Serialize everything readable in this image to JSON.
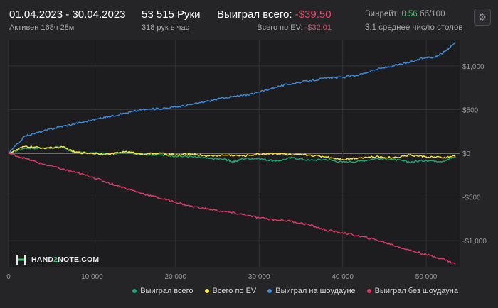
{
  "header": {
    "date_range": "01.04.2023 - 30.04.2023",
    "active_time": "Активен 168ч 28м",
    "hands": "53 515 Руки",
    "hands_per_hour": "318 рук в час",
    "won_total_label": "Выиграл всего:",
    "won_total_value": "-$39.50",
    "ev_label": "Всего по EV:",
    "ev_value": "-$32.01",
    "winrate_label": "Винрейт:",
    "winrate_value": "0.56",
    "winrate_unit": "бб/100",
    "avg_tables": "3.1 среднее число столов"
  },
  "icons": {
    "settings": "gear-icon",
    "logo": "hand2note-logo"
  },
  "logo": {
    "prefix": "HAND",
    "two": "2",
    "suffix": "NOTE.COM"
  },
  "colors": {
    "background": "#252528",
    "plot_background": "#1d1d20",
    "won_total": "#1fa874",
    "ev": "#ffe633",
    "showdown": "#3d8fe0",
    "non_showdown": "#e03a68",
    "negative": "#e24a6b",
    "positive": "#3ec46d"
  },
  "chart_data": {
    "type": "line",
    "xlabel": "",
    "ylabel": "",
    "xlim": [
      0,
      54000
    ],
    "ylim": [
      -1300,
      1300
    ],
    "x_ticks": [
      0,
      10000,
      20000,
      30000,
      40000,
      50000
    ],
    "x_tick_labels": [
      "0",
      "10 000",
      "20 000",
      "30 000",
      "40 000",
      "50 000"
    ],
    "y_ticks": [
      1000,
      500,
      0,
      -500,
      -1000
    ],
    "y_tick_labels": [
      "$1,000",
      "$500",
      "$0",
      "-$500",
      "-$1,000"
    ],
    "grid": true,
    "legend": "bottom-right",
    "series": [
      {
        "name": "Выиграл всего",
        "color": "#1fa874",
        "x": [
          0,
          2000,
          4000,
          6500,
          8000,
          10000,
          12000,
          14000,
          16000,
          18000,
          20000,
          22000,
          24000,
          26000,
          27000,
          28000,
          30000,
          32000,
          34000,
          36000,
          38000,
          40000,
          42000,
          44000,
          46000,
          48000,
          50000,
          52000,
          53515
        ],
        "y": [
          0,
          60,
          60,
          70,
          10,
          5,
          -10,
          10,
          -10,
          -20,
          -30,
          -40,
          -60,
          -70,
          -100,
          -60,
          -60,
          -90,
          -50,
          -80,
          -70,
          -100,
          -90,
          -60,
          -70,
          -100,
          -80,
          -90,
          -39.5
        ]
      },
      {
        "name": "Всего по EV",
        "color": "#ffe633",
        "x": [
          0,
          2000,
          4000,
          6500,
          8000,
          10000,
          12000,
          14000,
          16000,
          18000,
          20000,
          22000,
          24000,
          26000,
          28000,
          30000,
          32000,
          34000,
          36000,
          38000,
          40000,
          42000,
          44000,
          46000,
          48000,
          50000,
          52000,
          53515
        ],
        "y": [
          0,
          80,
          60,
          70,
          10,
          0,
          -10,
          20,
          -10,
          0,
          -20,
          -10,
          -30,
          -20,
          -30,
          -10,
          0,
          -20,
          -20,
          -40,
          -70,
          -50,
          -40,
          -50,
          -20,
          -40,
          -50,
          -32.01
        ]
      },
      {
        "name": "Выиграл на шоудауне",
        "color": "#3d8fe0",
        "x": [
          0,
          2000,
          4000,
          6000,
          8000,
          10000,
          12000,
          14000,
          16000,
          18000,
          20000,
          22000,
          24000,
          26000,
          28000,
          30000,
          32000,
          34000,
          36000,
          38000,
          40000,
          42000,
          44000,
          46000,
          48000,
          50000,
          51000,
          52000,
          53515
        ],
        "y": [
          0,
          200,
          250,
          300,
          340,
          380,
          420,
          460,
          500,
          510,
          530,
          560,
          600,
          640,
          660,
          700,
          760,
          800,
          830,
          860,
          870,
          900,
          960,
          1000,
          1040,
          1100,
          1100,
          1150,
          1270
        ]
      },
      {
        "name": "Выиграл без шоудауна",
        "color": "#e03a68",
        "x": [
          0,
          2000,
          4000,
          6000,
          8000,
          10000,
          12000,
          14000,
          16000,
          18000,
          20000,
          22000,
          24000,
          26000,
          28000,
          30000,
          32000,
          34000,
          36000,
          38000,
          40000,
          42000,
          44000,
          46000,
          48000,
          50000,
          52000,
          53515
        ],
        "y": [
          0,
          -60,
          -120,
          -170,
          -220,
          -270,
          -340,
          -400,
          -460,
          -510,
          -560,
          -610,
          -640,
          -670,
          -700,
          -740,
          -760,
          -780,
          -820,
          -880,
          -910,
          -950,
          -990,
          -1050,
          -1110,
          -1160,
          -1210,
          -1270
        ]
      }
    ]
  }
}
